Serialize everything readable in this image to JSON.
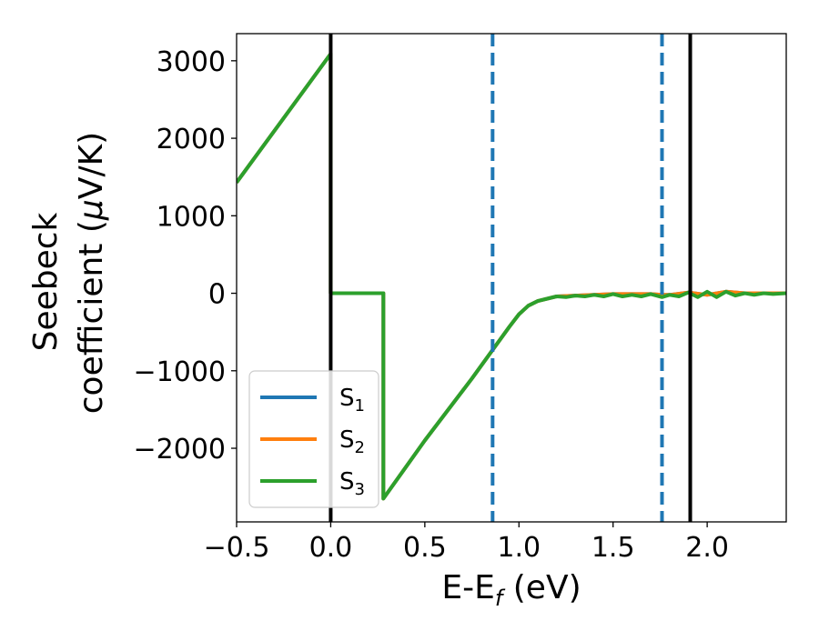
{
  "chart_data": {
    "type": "line",
    "xlabel": "E-E",
    "xlabel_sub": "f",
    "xlabel_unit": " (eV)",
    "ylabel_line1": "Seebeck",
    "ylabel_line2": "coefficient  (",
    "ylabel_mu": "μ",
    "ylabel_line2_end": "V/K)",
    "xlim": [
      -0.5,
      2.42
    ],
    "ylim": [
      -2950,
      3350
    ],
    "x_ticks": [
      -0.5,
      0.0,
      0.5,
      1.0,
      1.5,
      2.0
    ],
    "x_tick_labels": [
      "−0.5",
      "0.0",
      "0.5",
      "1.0",
      "1.5",
      "2.0"
    ],
    "y_ticks": [
      -2000,
      -1000,
      0,
      1000,
      2000,
      3000
    ],
    "y_tick_labels": [
      "−2000",
      "−1000",
      "0",
      "1000",
      "2000",
      "3000"
    ],
    "grid": false,
    "legend_position": "lower-left",
    "series": [
      {
        "name": "S",
        "name_sub": "1",
        "color": "#1f77b4",
        "x": [
          -0.5,
          0.0,
          0.0,
          0.28,
          0.28,
          0.5,
          0.75,
          0.95,
          1.0,
          1.05,
          1.1,
          1.2,
          1.3,
          1.4,
          1.5,
          1.6,
          1.7,
          1.76,
          1.8,
          1.9,
          2.0,
          2.1,
          2.2,
          2.3,
          2.42
        ],
        "y": [
          1430,
          3090,
          0,
          0,
          -2650,
          -1900,
          -1100,
          -430,
          -270,
          -160,
          -100,
          -40,
          -30,
          -20,
          -10,
          -10,
          -10,
          -20,
          -20,
          10,
          -20,
          20,
          0,
          0,
          0
        ]
      },
      {
        "name": "S",
        "name_sub": "2",
        "color": "#ff7f0e",
        "x": [
          -0.5,
          0.0,
          0.0,
          0.28,
          0.28,
          0.5,
          0.75,
          0.95,
          1.0,
          1.05,
          1.1,
          1.2,
          1.3,
          1.4,
          1.5,
          1.6,
          1.7,
          1.76,
          1.8,
          1.9,
          2.0,
          2.1,
          2.2,
          2.3,
          2.42
        ],
        "y": [
          1430,
          3090,
          0,
          0,
          -2650,
          -1900,
          -1100,
          -430,
          -270,
          -160,
          -100,
          -40,
          -30,
          -20,
          -10,
          -10,
          -10,
          -20,
          -20,
          10,
          -20,
          20,
          0,
          0,
          0
        ]
      },
      {
        "name": "S",
        "name_sub": "3",
        "color": "#2ca02c",
        "x": [
          -0.5,
          0.0,
          0.0,
          0.28,
          0.28,
          0.5,
          0.75,
          0.95,
          1.0,
          1.05,
          1.1,
          1.15,
          1.2,
          1.25,
          1.3,
          1.35,
          1.4,
          1.45,
          1.5,
          1.55,
          1.6,
          1.65,
          1.7,
          1.76,
          1.8,
          1.85,
          1.9,
          1.95,
          2.0,
          2.05,
          2.1,
          2.15,
          2.2,
          2.25,
          2.3,
          2.35,
          2.42
        ],
        "y": [
          1430,
          3090,
          0,
          0,
          -2650,
          -1900,
          -1100,
          -430,
          -270,
          -160,
          -100,
          -70,
          -40,
          -50,
          -30,
          -40,
          -20,
          -40,
          -10,
          -40,
          -20,
          -40,
          -10,
          -50,
          -20,
          -40,
          10,
          -50,
          20,
          -50,
          20,
          -30,
          0,
          -20,
          0,
          -10,
          0
        ]
      }
    ],
    "vlines": [
      {
        "x": 0.0,
        "color": "#000000",
        "style": "solid"
      },
      {
        "x": 1.91,
        "color": "#000000",
        "style": "solid"
      },
      {
        "x": 0.86,
        "color": "#1f77b4",
        "style": "dashed"
      },
      {
        "x": 1.76,
        "color": "#1f77b4",
        "style": "dashed"
      }
    ]
  }
}
